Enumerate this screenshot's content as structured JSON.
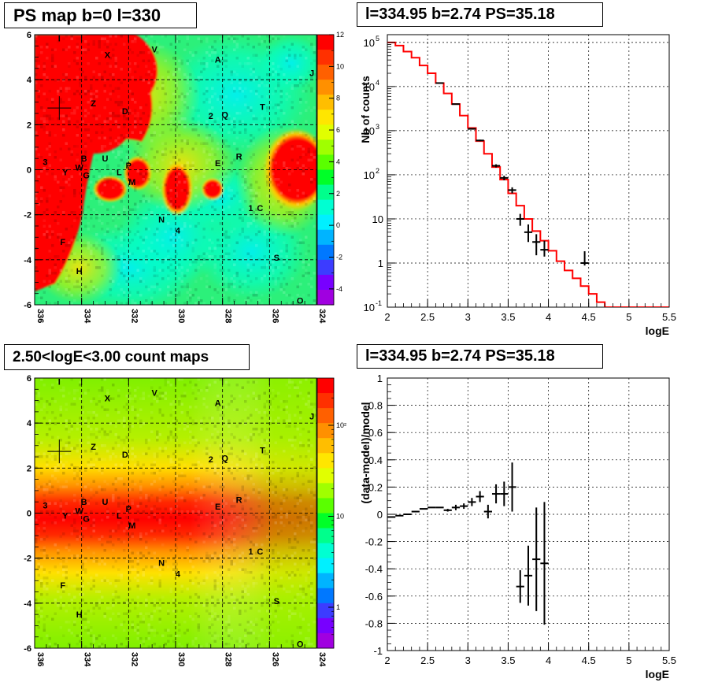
{
  "panels": {
    "tl_title": "PS map b=0 l=330",
    "tr_title": "l=334.95 b=2.74 PS=35.18",
    "bl_title": "2.50<logE<3.00 count maps",
    "br_title": "l=334.95 b=2.74 PS=35.18"
  },
  "colors": {
    "spectrum_model": "#ff0000",
    "data_points": "#000000",
    "grid": "#000000"
  },
  "chart_data": [
    {
      "type": "heatmap",
      "title": "PS map b=0 l=330",
      "xlim": [
        336,
        324
      ],
      "ylim": [
        -6,
        6
      ],
      "x_ticks": [
        "336",
        "334",
        "332",
        "330",
        "328",
        "326",
        "324"
      ],
      "y_ticks": [
        "6",
        "4",
        "2",
        "0",
        "-2",
        "-4",
        "-6"
      ],
      "colorbar": {
        "min": -5,
        "max": 12,
        "ticks": [
          "12",
          "10",
          "8",
          "6",
          "4",
          "2",
          "0",
          "-2",
          "-4"
        ]
      },
      "marker": {
        "l": 334.95,
        "b": 2.74
      },
      "sources": [
        {
          "label": "I",
          "l": 334.95,
          "b": 5.85
        },
        {
          "label": "X",
          "l": 332.9,
          "b": 5.1
        },
        {
          "label": "V",
          "l": 330.9,
          "b": 5.35
        },
        {
          "label": "A",
          "l": 328.2,
          "b": 4.9
        },
        {
          "label": "J",
          "l": 324.2,
          "b": 4.3
        },
        {
          "label": "Z",
          "l": 333.5,
          "b": 2.95
        },
        {
          "label": "D",
          "l": 332.15,
          "b": 2.6
        },
        {
          "label": "2",
          "l": 328.5,
          "b": 2.4
        },
        {
          "label": "Q",
          "l": 327.9,
          "b": 2.45
        },
        {
          "label": "T",
          "l": 326.3,
          "b": 2.8
        },
        {
          "label": "3",
          "l": 335.55,
          "b": 0.35
        },
        {
          "label": "B",
          "l": 333.9,
          "b": 0.5
        },
        {
          "label": "U",
          "l": 333.0,
          "b": 0.5
        },
        {
          "label": "W",
          "l": 334.1,
          "b": 0.1
        },
        {
          "label": "Y",
          "l": 334.7,
          "b": -0.1
        },
        {
          "label": "G",
          "l": 333.8,
          "b": -0.25
        },
        {
          "label": "P",
          "l": 332.0,
          "b": 0.2
        },
        {
          "label": "L",
          "l": 332.4,
          "b": -0.1
        },
        {
          "label": "M",
          "l": 331.85,
          "b": -0.55
        },
        {
          "label": "E",
          "l": 328.2,
          "b": 0.3
        },
        {
          "label": "R",
          "l": 327.3,
          "b": 0.6
        },
        {
          "label": "1",
          "l": 326.8,
          "b": -1.7
        },
        {
          "label": "C",
          "l": 326.4,
          "b": -1.7
        },
        {
          "label": "N",
          "l": 330.6,
          "b": -2.2
        },
        {
          "label": "4",
          "l": 329.9,
          "b": -2.7
        },
        {
          "label": "F",
          "l": 334.8,
          "b": -3.2
        },
        {
          "label": "S",
          "l": 325.7,
          "b": -3.9
        },
        {
          "label": "H",
          "l": 334.1,
          "b": -4.5
        },
        {
          "label": "O",
          "l": 324.7,
          "b": -5.8
        }
      ]
    },
    {
      "type": "line",
      "title": "l=334.95 b=2.74 PS=35.18",
      "xlabel": "logE",
      "ylabel": "Nb of counts",
      "xlim": [
        2,
        5.5
      ],
      "ylim": [
        0.1,
        150000
      ],
      "yscale": "log",
      "x_ticks": [
        "2",
        "2.5",
        "3",
        "3.5",
        "4",
        "4.5",
        "5",
        "5.5"
      ],
      "y_ticks": [
        "10^-1",
        "1",
        "10",
        "10^2",
        "10^3",
        "10^4",
        "10^5"
      ],
      "grid": true,
      "series": [
        {
          "style": "histogram",
          "bin_edges": [
            2.0,
            2.1,
            2.2,
            2.3,
            2.4,
            2.5,
            2.6,
            2.7,
            2.8,
            2.9,
            3.0,
            3.1,
            3.2,
            3.3,
            3.4,
            3.5,
            3.6,
            3.7,
            3.8,
            3.9,
            4.0,
            4.1,
            4.2,
            4.3,
            4.4,
            4.5,
            4.6,
            4.7,
            4.8,
            4.9,
            5.0,
            5.1,
            5.2,
            5.3,
            5.4,
            5.5
          ],
          "values": [
            100000,
            85000,
            62000,
            45000,
            30000,
            20000,
            12000,
            7000,
            4000,
            2200,
            1150,
            580,
            300,
            150,
            78,
            38,
            20,
            10,
            5.3,
            3.2,
            1.9,
            1.1,
            0.68,
            0.45,
            0.3,
            0.2,
            0.13,
            0.1,
            0.1,
            0.1,
            0.1,
            0.1,
            0.1,
            0.1,
            0.1
          ]
        },
        {
          "style": "errorbar",
          "x": [
            2.65,
            2.85,
            3.05,
            3.15,
            3.35,
            3.45,
            3.55,
            3.65,
            3.75,
            3.85,
            3.95,
            4.45
          ],
          "y": [
            12000,
            4000,
            1100,
            600,
            160,
            85,
            45,
            10,
            5,
            3,
            2,
            1
          ],
          "yerr_low": [
            11800,
            3930,
            1065,
            575,
            147,
            75,
            38,
            7,
            3,
            1.5,
            1.4,
            0.88
          ],
          "yerr_high": [
            12200,
            4070,
            1135,
            625,
            173,
            95,
            52,
            13,
            7.5,
            4.5,
            3.2,
            1.85
          ]
        }
      ]
    },
    {
      "type": "heatmap",
      "title": "2.50<logE<3.00 count maps",
      "xlim": [
        336,
        324
      ],
      "ylim": [
        -6,
        6
      ],
      "x_ticks": [
        "336",
        "334",
        "332",
        "330",
        "328",
        "326",
        "324"
      ],
      "y_ticks": [
        "6",
        "4",
        "2",
        "0",
        "-2",
        "-4",
        "-6"
      ],
      "colorbar": {
        "scale": "log",
        "ticks": [
          "10²",
          "10",
          "1"
        ]
      },
      "marker": {
        "l": 334.95,
        "b": 2.74
      }
    },
    {
      "type": "scatter",
      "title": "l=334.95 b=2.74 PS=35.18",
      "xlabel": "logE",
      "ylabel": "(data-model)/model",
      "xlim": [
        2,
        5.5
      ],
      "ylim": [
        -1,
        1
      ],
      "x_ticks": [
        "2",
        "2.5",
        "3",
        "3.5",
        "4",
        "4.5",
        "5",
        "5.5"
      ],
      "y_ticks": [
        "1",
        "0.8",
        "0.6",
        "0.4",
        "0.2",
        "0",
        "-0.2",
        "-0.4",
        "-0.6",
        "-0.8",
        "-1"
      ],
      "grid": true,
      "series": [
        {
          "style": "errorbar",
          "x": [
            2.05,
            2.15,
            2.25,
            2.35,
            2.45,
            2.55,
            2.65,
            2.75,
            2.85,
            2.95,
            3.05,
            3.15,
            3.25,
            3.35,
            3.45,
            3.55,
            3.65,
            3.75,
            3.85,
            3.95
          ],
          "y": [
            -0.02,
            -0.01,
            0.0,
            0.02,
            0.04,
            0.05,
            0.05,
            0.03,
            0.05,
            0.06,
            0.09,
            0.13,
            0.02,
            0.15,
            0.15,
            0.2,
            -0.53,
            -0.45,
            -0.33,
            -0.36
          ],
          "yerr": [
            0.0,
            0.0,
            0.0,
            0.0,
            0.0,
            0.0,
            0.0,
            0.01,
            0.02,
            0.02,
            0.03,
            0.04,
            0.05,
            0.07,
            0.09,
            0.18,
            0.12,
            0.22,
            0.38,
            0.45
          ],
          "xerr": 0.05
        }
      ]
    }
  ]
}
